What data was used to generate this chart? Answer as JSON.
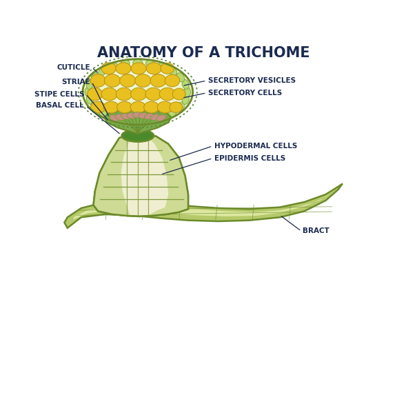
{
  "title": "ANATOMY OF A TRICHOME",
  "title_fontsize": 15,
  "title_color": "#1a2a50",
  "title_fontweight": "bold",
  "background_color": "#ffffff",
  "colors": {
    "bract_fill": "#b5c96a",
    "bract_stroke": "#6b8a2a",
    "bract_inner": "#dce8a0",
    "stem_stroke": "#6b8a2a",
    "hypodermal_fill": "#c8d88a",
    "epidermis_fill": "#f0eed0",
    "cell_stroke": "#7a9a3a",
    "head_bg_fill": "#eef5c8",
    "head_cuticle_color": "#5a8a3a",
    "secretory_cell_fill": "#b8d870",
    "vesicle_fill": "#e8c020",
    "vesicle_stroke": "#b89010",
    "stipe_fill": "#7aaa4a",
    "basal_fill": "#4a8a2a",
    "striae_fill": "#c89080",
    "label_color": "#1a2a50",
    "label_fontsize": 7.5,
    "line_color": "#333333",
    "lw_main": 1.8,
    "lw_cell": 0.9
  },
  "labels": {
    "cuticle": "CUTICLE",
    "striae": "STRIAE",
    "stipe_cells": "STIPE CELLS",
    "basal_cell": "BASAL CELL",
    "secretory_vesicles": "SECRETORY VESICLES",
    "secretory_cells": "SECRETORY CELLS",
    "hypodermal_cells": "HYPODERMAL CELLS",
    "epidermis_cells": "EPIDERMIS CELLS",
    "bract": "BRACT"
  }
}
